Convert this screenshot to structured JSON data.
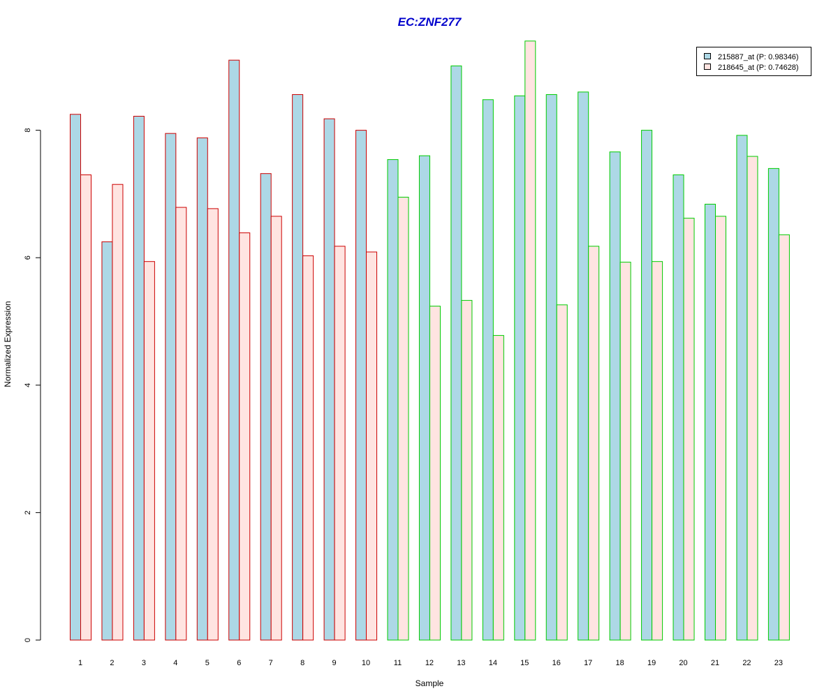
{
  "chart_data": {
    "type": "bar",
    "title": "EC:ZNF277",
    "title_color": "#0000CC",
    "xlabel": "Sample",
    "ylabel": "Normalized Expression",
    "ylim": [
      0,
      9.6
    ],
    "yticks": [
      0,
      2,
      4,
      6,
      8
    ],
    "grid": false,
    "legend_placement": "top-right",
    "categories": [
      "1",
      "2",
      "3",
      "4",
      "5",
      "6",
      "7",
      "8",
      "9",
      "10",
      "11",
      "12",
      "13",
      "14",
      "15",
      "16",
      "17",
      "18",
      "19",
      "20",
      "21",
      "22",
      "23"
    ],
    "groups": [
      "red",
      "red",
      "red",
      "red",
      "red",
      "red",
      "red",
      "red",
      "red",
      "red",
      "green",
      "green",
      "green",
      "green",
      "green",
      "green",
      "green",
      "green",
      "green",
      "green",
      "green",
      "green",
      "green"
    ],
    "group_border_colors": {
      "red": "#CC0000",
      "green": "#00CC00"
    },
    "series": [
      {
        "name": "215887_at (P: 0.98346)",
        "color": "#ADD8E6",
        "values": [
          8.25,
          6.25,
          8.22,
          7.95,
          7.88,
          9.1,
          7.32,
          8.56,
          8.18,
          8.0,
          7.54,
          7.6,
          9.01,
          8.48,
          8.54,
          8.56,
          8.6,
          7.66,
          8.0,
          7.3,
          6.84,
          7.92,
          7.4
        ]
      },
      {
        "name": "218645_at (P: 0.74628)",
        "color": "#FFE4E1",
        "values": [
          7.3,
          7.15,
          5.94,
          6.79,
          6.77,
          6.39,
          6.65,
          6.03,
          6.18,
          6.09,
          6.95,
          5.24,
          5.33,
          4.78,
          9.4,
          5.26,
          6.18,
          5.93,
          5.94,
          6.62,
          6.65,
          7.59,
          6.36
        ]
      }
    ]
  }
}
